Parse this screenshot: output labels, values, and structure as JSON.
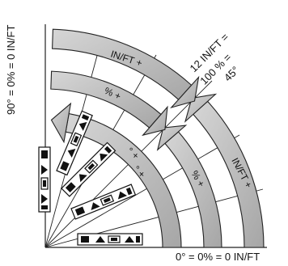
{
  "labels": {
    "bottom": "0° = 0% = 0 IN/FT",
    "left": "90° = 0% = 0 IN/FT",
    "diag_line1": "12 IN/FT =",
    "diag_line2": "100 % =",
    "diag_line3": "45°"
  },
  "bands": {
    "outer_top": "IN/FT  +",
    "outer_right": "IN/FT  +",
    "middle_top": "%  +",
    "middle_right": "%  +",
    "inner_top": "°  +",
    "inner_right": "°  +"
  },
  "colors": {
    "band_fill": "#bfbfbf",
    "band_fill_dark": "#8c8c8c",
    "stroke": "#222222",
    "arrow_fill": "#9a9a9a"
  },
  "icons": {
    "level_tool": "spirit-level-icon"
  }
}
